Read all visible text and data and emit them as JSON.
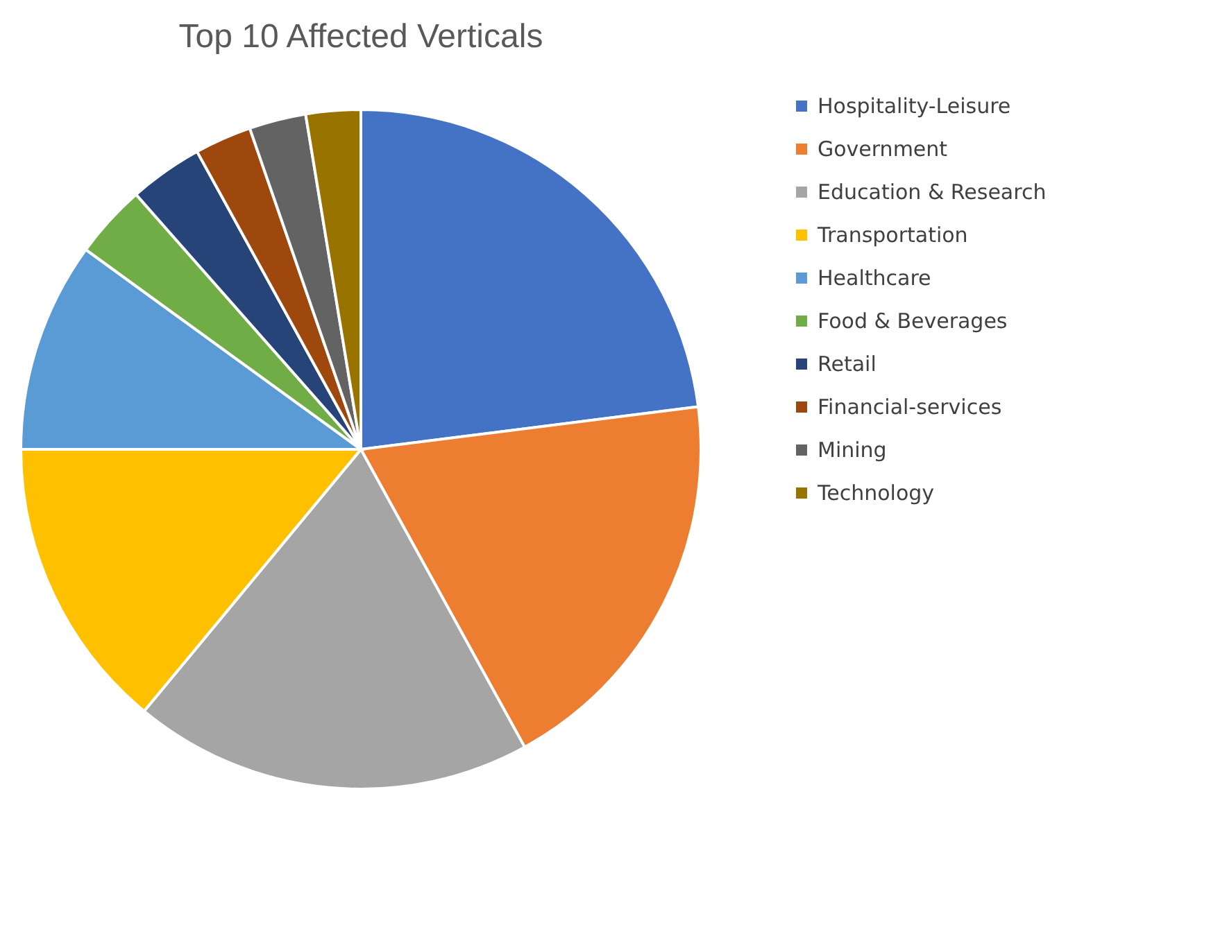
{
  "chart_data": {
    "type": "pie",
    "title": "Top 10 Affected Verticals",
    "categories": [
      "Hospitality-Leisure",
      "Government",
      "Education & Research",
      "Transportation",
      "Healthcare",
      "Food & Beverages",
      "Retail",
      "Financial-services",
      "Mining",
      "Technology"
    ],
    "values": [
      23,
      19,
      19,
      14,
      10,
      3.5,
      3.5,
      2.7,
      2.7,
      2.6
    ],
    "colors": [
      "#4472c4",
      "#ed7d31",
      "#a5a5a5",
      "#ffc000",
      "#5b9bd5",
      "#70ad47",
      "#264478",
      "#9e480e",
      "#636363",
      "#997300"
    ],
    "legend": "right"
  }
}
